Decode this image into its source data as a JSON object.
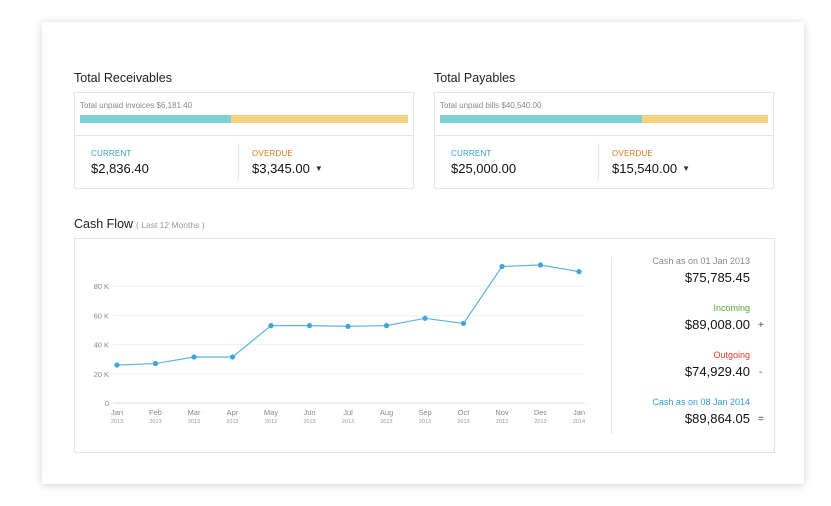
{
  "receivables": {
    "title": "Total Receivables",
    "subtitle": "Total unpaid invoices $6,181.40",
    "current_label": "CURRENT",
    "current_value": "$2,836.40",
    "overdue_label": "OVERDUE",
    "overdue_value": "$3,345.00",
    "current_fraction": 0.459
  },
  "payables": {
    "title": "Total Payables",
    "subtitle": "Total unpaid bills $40,540.00",
    "current_label": "CURRENT",
    "current_value": "$25,000.00",
    "overdue_label": "OVERDUE",
    "overdue_value": "$15,540.00",
    "current_fraction": 0.617
  },
  "cashflow": {
    "title": "Cash Flow",
    "range": "( Last 12 Months )",
    "opening_label": "Cash as on 01 Jan 2013",
    "opening_value": "$75,785.45",
    "incoming_label": "Incoming",
    "incoming_value": "$89,008.00",
    "incoming_op": "+",
    "outgoing_label": "Outgoing",
    "outgoing_value": "$74,929.40",
    "outgoing_op": "-",
    "closing_label": "Cash as on 08 Jan 2014",
    "closing_value": "$89,864.05",
    "closing_op": "=",
    "colors": {
      "incoming": "#5aa832",
      "outgoing": "#d9412e",
      "closing": "#2f9fd0",
      "line": "#5fb5e0",
      "current_bar": "#7fd0d6",
      "overdue_bar": "#f3d27e"
    }
  },
  "chart_data": {
    "type": "line",
    "categories": [
      "Jan 2013",
      "Feb 2013",
      "Mar 2013",
      "Apr 2013",
      "May 2013",
      "Jun 2013",
      "Jul 2013",
      "Aug 2013",
      "Sep 2013",
      "Oct 2013",
      "Nov 2013",
      "Dec 2013",
      "Jan 2014"
    ],
    "x_months": [
      "Jan",
      "Feb",
      "Mar",
      "Apr",
      "May",
      "Jun",
      "Jul",
      "Aug",
      "Sep",
      "Oct",
      "Nov",
      "Dec",
      "Jan"
    ],
    "x_years": [
      "2013",
      "2013",
      "2013",
      "2013",
      "2013",
      "2013",
      "2013",
      "2013",
      "2013",
      "2013",
      "2013",
      "2013",
      "2014"
    ],
    "values": [
      26000,
      27000,
      31500,
      31500,
      53000,
      53000,
      52500,
      53000,
      58000,
      54500,
      93500,
      94500,
      90000
    ],
    "yticks": [
      0,
      20000,
      40000,
      60000,
      80000
    ],
    "ytick_labels": [
      "0",
      "20 K",
      "40 K",
      "60 K",
      "80 K"
    ],
    "ylim": [
      0,
      100000
    ],
    "grid": true
  }
}
